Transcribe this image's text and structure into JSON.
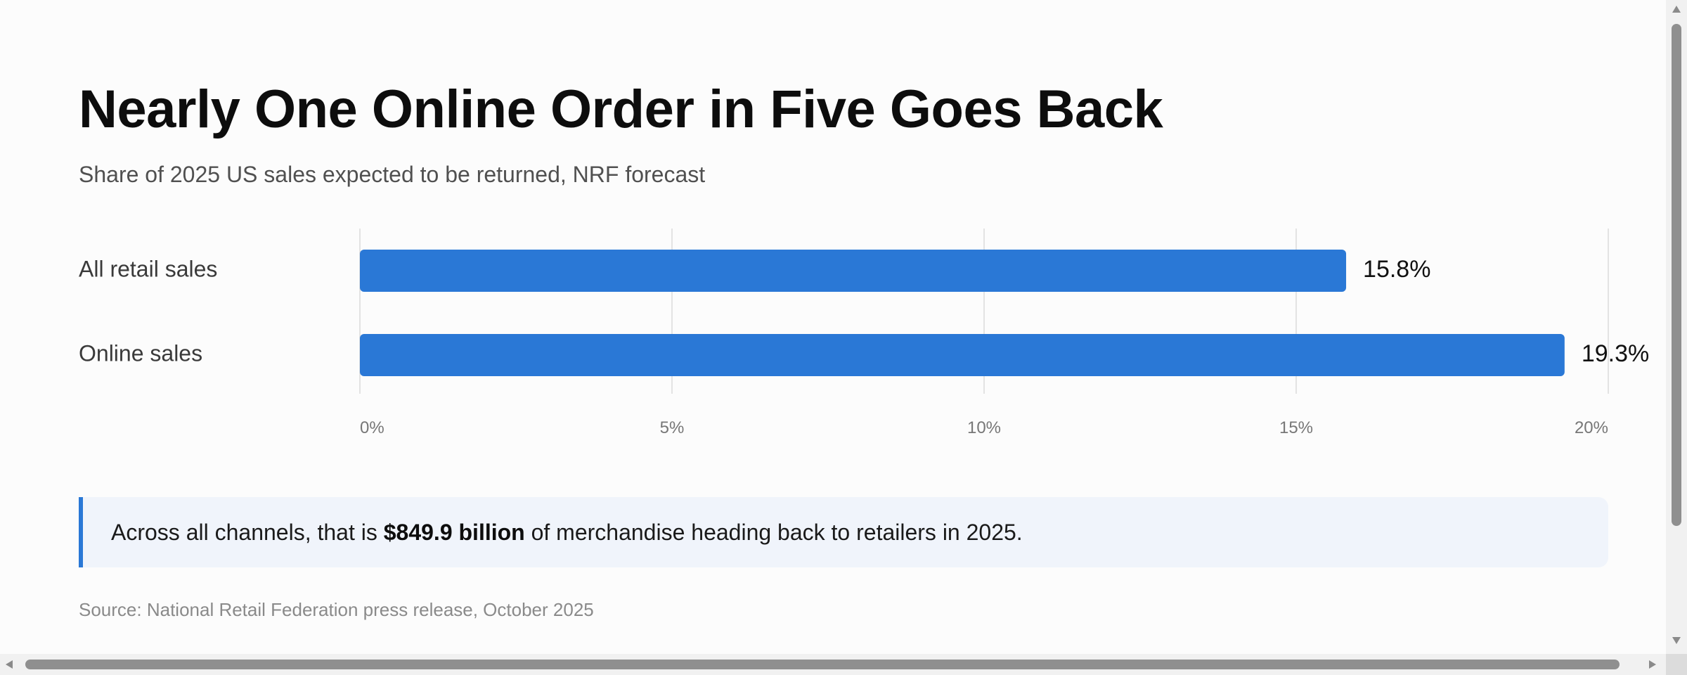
{
  "title": "Nearly One Online Order in Five Goes Back",
  "subtitle": "Share of 2025 US sales expected to be returned, NRF forecast",
  "chart_data": {
    "type": "bar",
    "orientation": "horizontal",
    "categories": [
      "All retail sales",
      "Online sales"
    ],
    "values": [
      15.8,
      19.3
    ],
    "value_labels": [
      "15.8%",
      "19.3%"
    ],
    "xlim": [
      0,
      20
    ],
    "ticks": [
      0,
      5,
      10,
      15,
      20
    ],
    "tick_labels": [
      "0%",
      "5%",
      "10%",
      "15%",
      "20%"
    ],
    "grid": true,
    "bar_color": "#2a78d6"
  },
  "callout": {
    "prefix": "Across all channels, that is ",
    "highlight": "$849.9 billion",
    "suffix": " of merchandise heading back to retailers in 2025."
  },
  "source": "Source: National Retail Federation press release, October 2025"
}
